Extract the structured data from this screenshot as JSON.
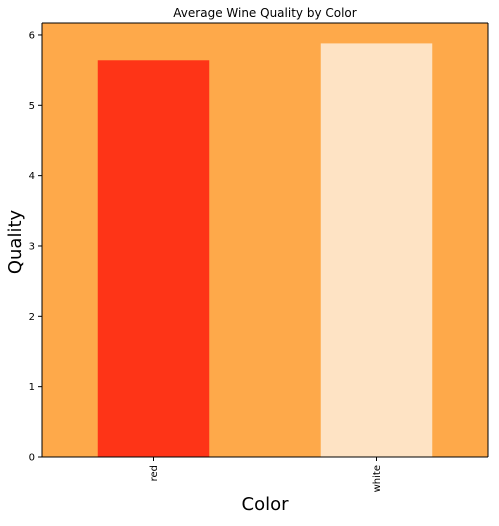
{
  "chart_data": {
    "type": "bar",
    "title": "Average Wine Quality by Color",
    "xlabel": "Color",
    "ylabel": "Quality",
    "categories": [
      "red",
      "white"
    ],
    "values": [
      5.64,
      5.88
    ],
    "ylim": [
      0,
      6.17
    ],
    "yticks": [
      "0",
      "1",
      "2",
      "3",
      "4",
      "5",
      "6"
    ],
    "grid": false,
    "legend": "none",
    "colors": {
      "plot_background": "#fea94a",
      "bars": [
        "#fe3417",
        "#fee3c4"
      ],
      "axis": "#000000"
    }
  }
}
